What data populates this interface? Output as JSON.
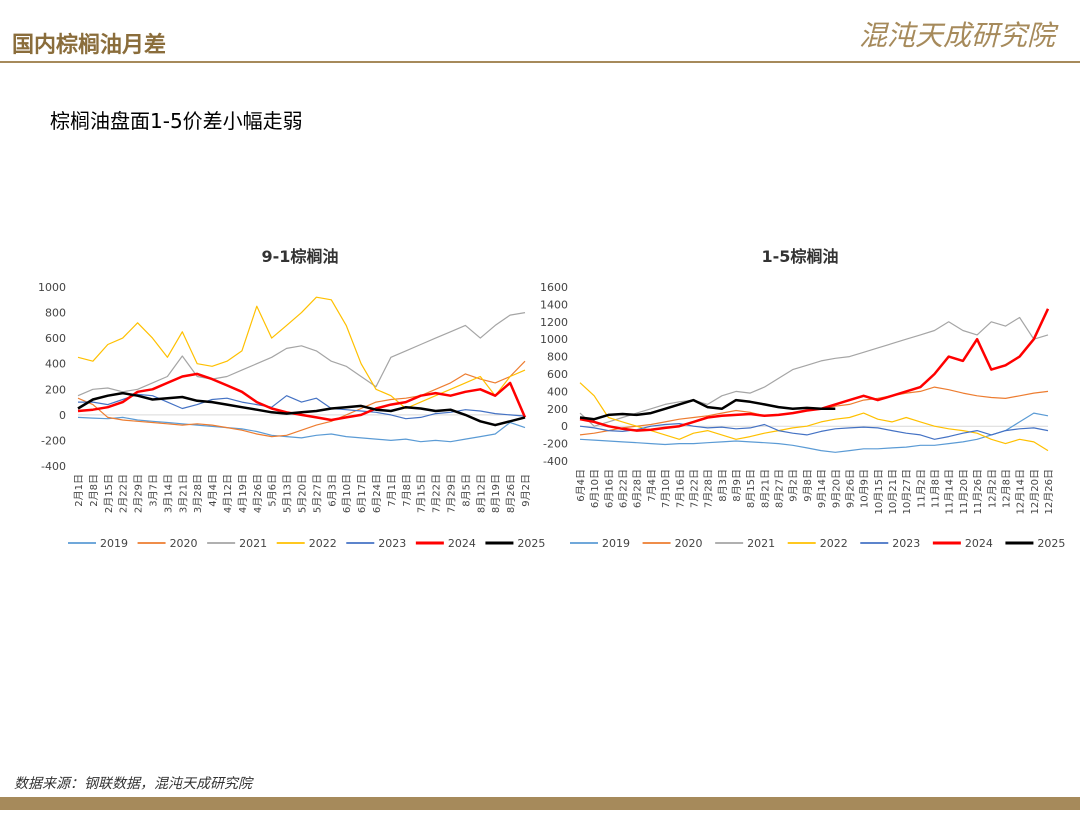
{
  "header": {
    "title": "国内棕榈油月差",
    "logo": "混沌天成研究院"
  },
  "subtitle": "棕榈油盘面1-5价差小幅走弱",
  "source": "数据来源：钢联数据，混沌天成研究院",
  "chart_data": [
    {
      "type": "line",
      "title": "9-1棕榈油",
      "categories": [
        "2月1日",
        "2月8日",
        "2月15日",
        "2月22日",
        "2月29日",
        "3月7日",
        "3月14日",
        "3月21日",
        "3月28日",
        "4月4日",
        "4月12日",
        "4月19日",
        "4月26日",
        "5月6日",
        "5月13日",
        "5月20日",
        "5月27日",
        "6月3日",
        "6月10日",
        "6月17日",
        "6月24日",
        "7月1日",
        "7月8日",
        "7月15日",
        "7月22日",
        "7月29日",
        "8月5日",
        "8月12日",
        "8月19日",
        "8月26日",
        "9月2日"
      ],
      "ylim": [
        -400,
        1000
      ],
      "yticks": [
        -400,
        -200,
        0,
        200,
        400,
        600,
        800,
        1000
      ],
      "series": [
        {
          "name": "2019",
          "color": "#5b9bd5",
          "width": 1.2,
          "values": [
            -20,
            -25,
            -30,
            -20,
            -40,
            -50,
            -60,
            -70,
            -80,
            -90,
            -100,
            -110,
            -130,
            -160,
            -170,
            -180,
            -160,
            -150,
            -170,
            -180,
            -190,
            -200,
            -190,
            -210,
            -200,
            -210,
            -190,
            -170,
            -150,
            -60,
            -100
          ]
        },
        {
          "name": "2020",
          "color": "#ed7d31",
          "width": 1.2,
          "values": [
            130,
            80,
            -20,
            -40,
            -50,
            -60,
            -70,
            -80,
            -70,
            -80,
            -100,
            -120,
            -150,
            -170,
            -160,
            -120,
            -80,
            -50,
            0,
            50,
            100,
            120,
            130,
            150,
            200,
            250,
            320,
            280,
            250,
            300,
            420
          ]
        },
        {
          "name": "2021",
          "color": "#a5a5a5",
          "width": 1.2,
          "values": [
            150,
            200,
            210,
            180,
            200,
            250,
            300,
            460,
            300,
            280,
            300,
            350,
            400,
            450,
            520,
            540,
            500,
            420,
            380,
            300,
            220,
            450,
            500,
            550,
            600,
            650,
            700,
            600,
            700,
            780,
            800
          ]
        },
        {
          "name": "2022",
          "color": "#ffc000",
          "width": 1.2,
          "values": [
            450,
            420,
            550,
            600,
            720,
            600,
            450,
            650,
            400,
            380,
            420,
            500,
            850,
            600,
            700,
            800,
            920,
            900,
            700,
            400,
            200,
            150,
            50,
            100,
            150,
            200,
            250,
            300,
            150,
            300,
            350
          ]
        },
        {
          "name": "2023",
          "color": "#4472c4",
          "width": 1.2,
          "values": [
            100,
            100,
            80,
            120,
            160,
            150,
            100,
            50,
            80,
            120,
            130,
            100,
            80,
            60,
            150,
            100,
            130,
            50,
            40,
            30,
            20,
            0,
            -30,
            -20,
            10,
            20,
            40,
            30,
            10,
            0,
            -10
          ]
        },
        {
          "name": "2024",
          "color": "#ff0000",
          "width": 2.5,
          "values": [
            30,
            40,
            60,
            100,
            180,
            200,
            250,
            300,
            320,
            280,
            230,
            180,
            100,
            50,
            20,
            0,
            -20,
            -40,
            -20,
            0,
            50,
            80,
            100,
            150,
            170,
            150,
            180,
            200,
            150,
            250,
            -20
          ]
        },
        {
          "name": "2025",
          "color": "#000000",
          "width": 2.5,
          "values": [
            50,
            120,
            150,
            170,
            150,
            120,
            130,
            140,
            110,
            100,
            80,
            60,
            40,
            20,
            10,
            20,
            30,
            50,
            60,
            70,
            40,
            30,
            60,
            50,
            30,
            40,
            0,
            -50,
            -80,
            -50,
            -20
          ]
        }
      ]
    },
    {
      "type": "line",
      "title": "1-5棕榈油",
      "categories": [
        "6月4日",
        "6月10日",
        "6月16日",
        "6月22日",
        "6月28日",
        "7月4日",
        "7月10日",
        "7月16日",
        "7月22日",
        "7月28日",
        "8月3日",
        "8月9日",
        "8月15日",
        "8月21日",
        "8月27日",
        "9月2日",
        "9月8日",
        "9月14日",
        "9月20日",
        "9月26日",
        "10月9日",
        "10月15日",
        "10月21日",
        "10月27日",
        "11月2日",
        "11月8日",
        "11月14日",
        "11月20日",
        "11月26日",
        "12月2日",
        "12月8日",
        "12月14日",
        "12月20日",
        "12月26日"
      ],
      "ylim": [
        -400,
        1600
      ],
      "yticks": [
        -400,
        -200,
        0,
        200,
        400,
        600,
        800,
        1000,
        1200,
        1400,
        1600
      ],
      "series": [
        {
          "name": "2019",
          "color": "#5b9bd5",
          "width": 1.2,
          "values": [
            -150,
            -160,
            -170,
            -180,
            -190,
            -200,
            -210,
            -200,
            -200,
            -190,
            -180,
            -170,
            -180,
            -190,
            -200,
            -220,
            -250,
            -280,
            -300,
            -280,
            -260,
            -260,
            -250,
            -240,
            -220,
            -220,
            -200,
            -180,
            -150,
            -100,
            -50,
            50,
            150,
            120
          ]
        },
        {
          "name": "2020",
          "color": "#ed7d31",
          "width": 1.2,
          "values": [
            -100,
            -80,
            -50,
            -20,
            0,
            20,
            50,
            80,
            100,
            120,
            150,
            180,
            160,
            120,
            130,
            150,
            180,
            200,
            230,
            250,
            300,
            320,
            350,
            380,
            400,
            450,
            420,
            380,
            350,
            330,
            320,
            350,
            380,
            400
          ]
        },
        {
          "name": "2021",
          "color": "#a5a5a5",
          "width": 1.2,
          "values": [
            150,
            0,
            50,
            100,
            150,
            200,
            250,
            280,
            300,
            250,
            350,
            400,
            380,
            450,
            550,
            650,
            700,
            750,
            780,
            800,
            850,
            900,
            950,
            1000,
            1050,
            1100,
            1200,
            1100,
            1050,
            1200,
            1150,
            1250,
            1000,
            1050
          ]
        },
        {
          "name": "2022",
          "color": "#ffc000",
          "width": 1.2,
          "values": [
            500,
            350,
            100,
            50,
            0,
            -50,
            -100,
            -150,
            -80,
            -50,
            -100,
            -150,
            -120,
            -80,
            -50,
            -20,
            0,
            50,
            80,
            100,
            150,
            80,
            50,
            100,
            50,
            0,
            -30,
            -50,
            -80,
            -150,
            -200,
            -150,
            -180,
            -280
          ]
        },
        {
          "name": "2023",
          "color": "#4472c4",
          "width": 1.2,
          "values": [
            0,
            -20,
            -50,
            -60,
            -40,
            0,
            20,
            30,
            0,
            -20,
            -10,
            -30,
            -20,
            20,
            -50,
            -80,
            -100,
            -60,
            -30,
            -20,
            -10,
            -20,
            -50,
            -80,
            -100,
            -150,
            -120,
            -80,
            -50,
            -100,
            -50,
            -30,
            -20,
            -50
          ]
        },
        {
          "name": "2024",
          "color": "#ff0000",
          "width": 2.5,
          "values": [
            80,
            50,
            0,
            -30,
            -50,
            -40,
            -20,
            0,
            50,
            100,
            120,
            130,
            140,
            120,
            130,
            150,
            180,
            200,
            250,
            300,
            350,
            300,
            350,
            400,
            450,
            600,
            800,
            750,
            1000,
            650,
            700,
            800,
            1000,
            1350
          ]
        },
        {
          "name": "2025",
          "color": "#000000",
          "width": 2.5,
          "values": [
            100,
            80,
            130,
            140,
            130,
            150,
            200,
            250,
            300,
            220,
            200,
            300,
            280,
            250,
            220,
            200,
            210,
            200,
            200,
            null,
            null,
            null,
            null,
            null,
            null,
            null,
            null,
            null,
            null,
            null,
            null,
            null,
            null,
            null
          ]
        }
      ]
    }
  ]
}
